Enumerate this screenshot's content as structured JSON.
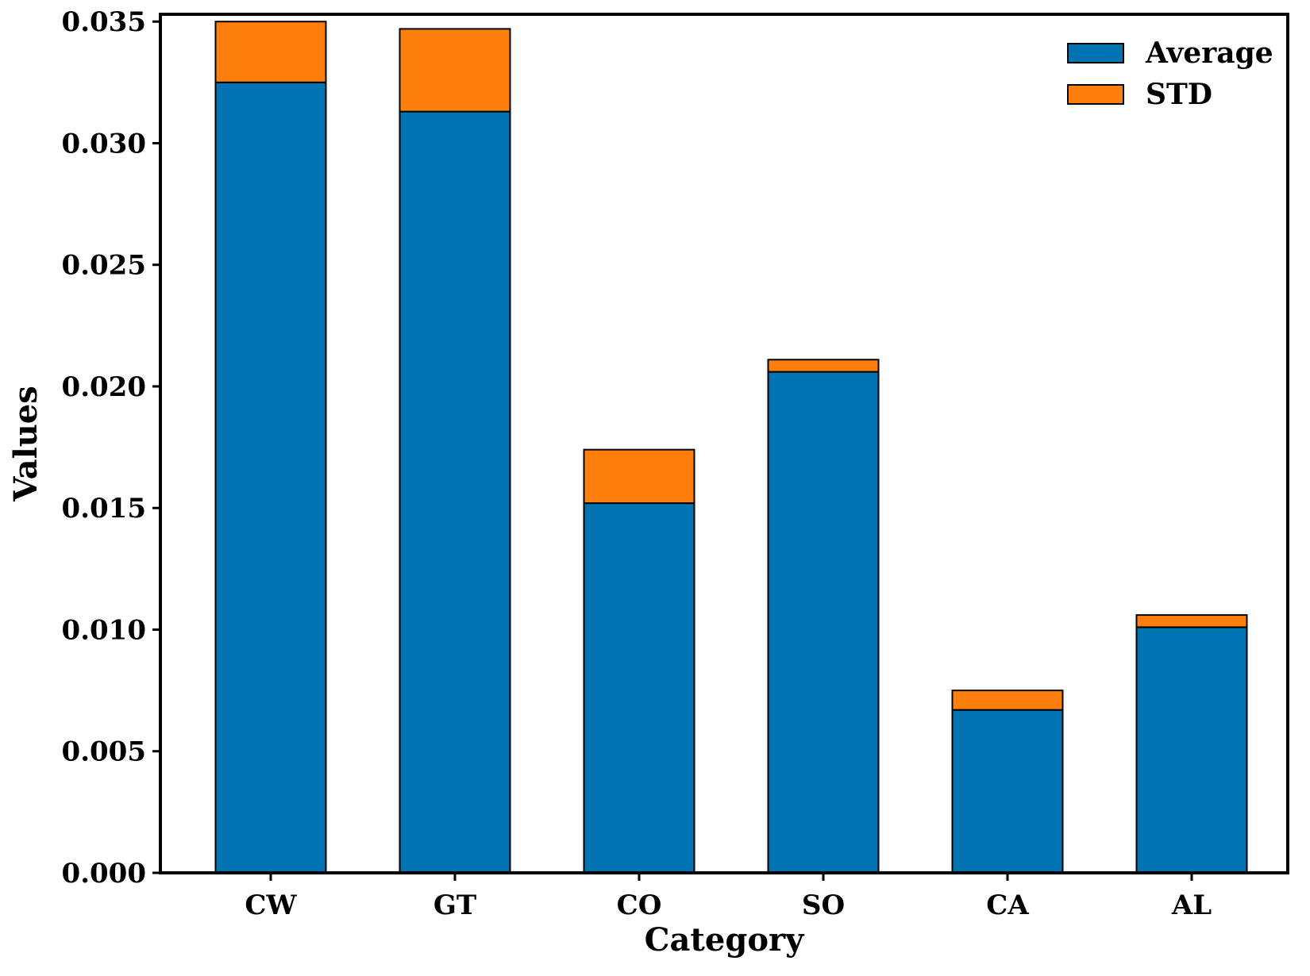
{
  "chart_data": {
    "type": "bar",
    "stacked": true,
    "title": "",
    "xlabel": "Category",
    "ylabel": "Values",
    "categories": [
      "CW",
      "GT",
      "CO",
      "SO",
      "CA",
      "AL"
    ],
    "series": [
      {
        "name": "Average",
        "color": "#0173b2",
        "values": [
          0.0325,
          0.0313,
          0.0152,
          0.0206,
          0.0067,
          0.0101
        ]
      },
      {
        "name": "STD",
        "color": "#ff7f0e",
        "values": [
          0.0025,
          0.0034,
          0.0022,
          0.0005,
          0.0008,
          0.0005
        ]
      }
    ],
    "ylim": [
      0,
      0.0353
    ],
    "yticks": [
      "0.000",
      "0.005",
      "0.010",
      "0.015",
      "0.020",
      "0.025",
      "0.030",
      "0.035"
    ],
    "grid": false,
    "legend_position": "top-right"
  }
}
